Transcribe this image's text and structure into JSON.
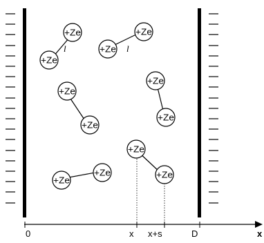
{
  "charge_label": "+Ze",
  "bond_label": "l",
  "axis": {
    "origin": "0",
    "position_x": "x",
    "position_x_plus_s": "x+s",
    "plate_separation": "D",
    "axis_name": "x"
  }
}
